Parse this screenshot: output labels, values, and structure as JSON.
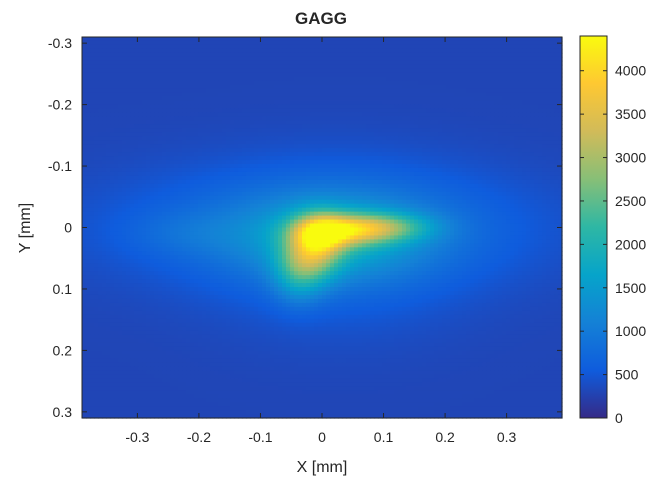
{
  "chart_data": {
    "type": "heatmap",
    "title": "GAGG",
    "xlabel": "X [mm]",
    "ylabel": "Y [mm]",
    "xlim": [
      -0.39,
      0.39
    ],
    "ylim": [
      -0.31,
      0.31
    ],
    "y_direction": "reversed",
    "x_ticks": [
      {
        "value": -0.3,
        "label": "-0.3"
      },
      {
        "value": -0.2,
        "label": "-0.2"
      },
      {
        "value": -0.1,
        "label": "-0.1"
      },
      {
        "value": 0,
        "label": "0"
      },
      {
        "value": 0.1,
        "label": "0.1"
      },
      {
        "value": 0.2,
        "label": "0.2"
      },
      {
        "value": 0.3,
        "label": "0.3"
      }
    ],
    "y_ticks": [
      {
        "value": -0.3,
        "label": "-0.3"
      },
      {
        "value": -0.2,
        "label": "-0.2"
      },
      {
        "value": -0.1,
        "label": "-0.1"
      },
      {
        "value": 0,
        "label": "0"
      },
      {
        "value": 0.1,
        "label": "0.1"
      },
      {
        "value": 0.2,
        "label": "0.2"
      },
      {
        "value": 0.3,
        "label": "0.3"
      }
    ],
    "colorbar": {
      "colormap": "parula",
      "range": [
        0,
        4400
      ],
      "ticks": [
        {
          "value": 0,
          "label": "0"
        },
        {
          "value": 500,
          "label": "500"
        },
        {
          "value": 1000,
          "label": "1000"
        },
        {
          "value": 1500,
          "label": "1500"
        },
        {
          "value": 2000,
          "label": "2000"
        },
        {
          "value": 2500,
          "label": "2500"
        },
        {
          "value": 3000,
          "label": "3000"
        },
        {
          "value": 3500,
          "label": "3500"
        },
        {
          "value": 4000,
          "label": "4000"
        }
      ]
    },
    "background_level": 300,
    "intensity_blobs": [
      {
        "x": 0.0,
        "y": 0.0,
        "sx": 0.22,
        "sy": 0.065,
        "amp": 650
      },
      {
        "x": 0.03,
        "y": 0.04,
        "sx": 0.14,
        "sy": 0.09,
        "amp": 300
      },
      {
        "x": -0.22,
        "y": 0.01,
        "sx": 0.07,
        "sy": 0.025,
        "amp": 200
      },
      {
        "x": 0.02,
        "y": 0.02,
        "sx": 0.1,
        "sy": 0.045,
        "amp": 700
      },
      {
        "x": -0.04,
        "y": 0.07,
        "sx": 0.028,
        "sy": 0.035,
        "amp": 1000
      },
      {
        "x": 0.1,
        "y": 0.0,
        "sx": 0.055,
        "sy": 0.016,
        "amp": 1300
      },
      {
        "x": 0.03,
        "y": 0.005,
        "sx": 0.05,
        "sy": 0.018,
        "amp": 1600
      },
      {
        "x": -0.01,
        "y": 0.035,
        "sx": 0.03,
        "sy": 0.035,
        "amp": 1500
      },
      {
        "x": 0.0,
        "y": 0.01,
        "sx": 0.028,
        "sy": 0.022,
        "amp": 900
      }
    ],
    "colors": {
      "axis_color": "#262626",
      "colormap_stops": [
        "#352A87",
        "#0F5CDD",
        "#1481D6",
        "#06A4CA",
        "#2EB7A4",
        "#87BF77",
        "#D1BB59",
        "#FEC832",
        "#F9FB0E"
      ]
    }
  }
}
